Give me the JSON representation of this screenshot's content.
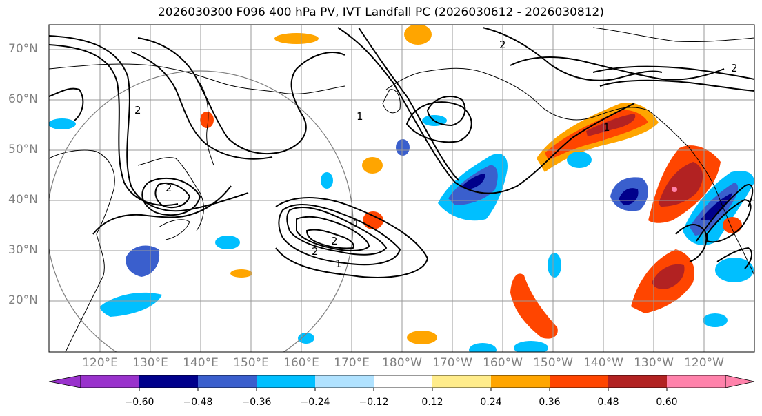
{
  "title": "2026030300 F096 400 hPa PV, IVT Landfall PC (2026030612 - 2026030812)",
  "map": {
    "lat_labels": [
      "70°N",
      "60°N",
      "50°N",
      "40°N",
      "30°N",
      "20°N"
    ],
    "lon_labels": [
      "120°E",
      "130°E",
      "140°E",
      "150°E",
      "160°E",
      "170°E",
      "180°W",
      "170°W",
      "160°W",
      "150°W",
      "140°W",
      "130°W",
      "120°W"
    ],
    "pv_contour_label": "2",
    "pc_contour_label": "1"
  },
  "colorbar": {
    "ticks": [
      "−0.60",
      "−0.48",
      "−0.36",
      "−0.24",
      "−0.12",
      "0.12",
      "0.24",
      "0.36",
      "0.48",
      "0.60"
    ],
    "colors": [
      "#9932cc",
      "#00008b",
      "#3a5fcd",
      "#00bfff",
      "#b0e2ff",
      "#ffffff",
      "#ffec8b",
      "#ffa500",
      "#ff4500",
      "#b22222",
      "#ff82ab"
    ]
  }
}
